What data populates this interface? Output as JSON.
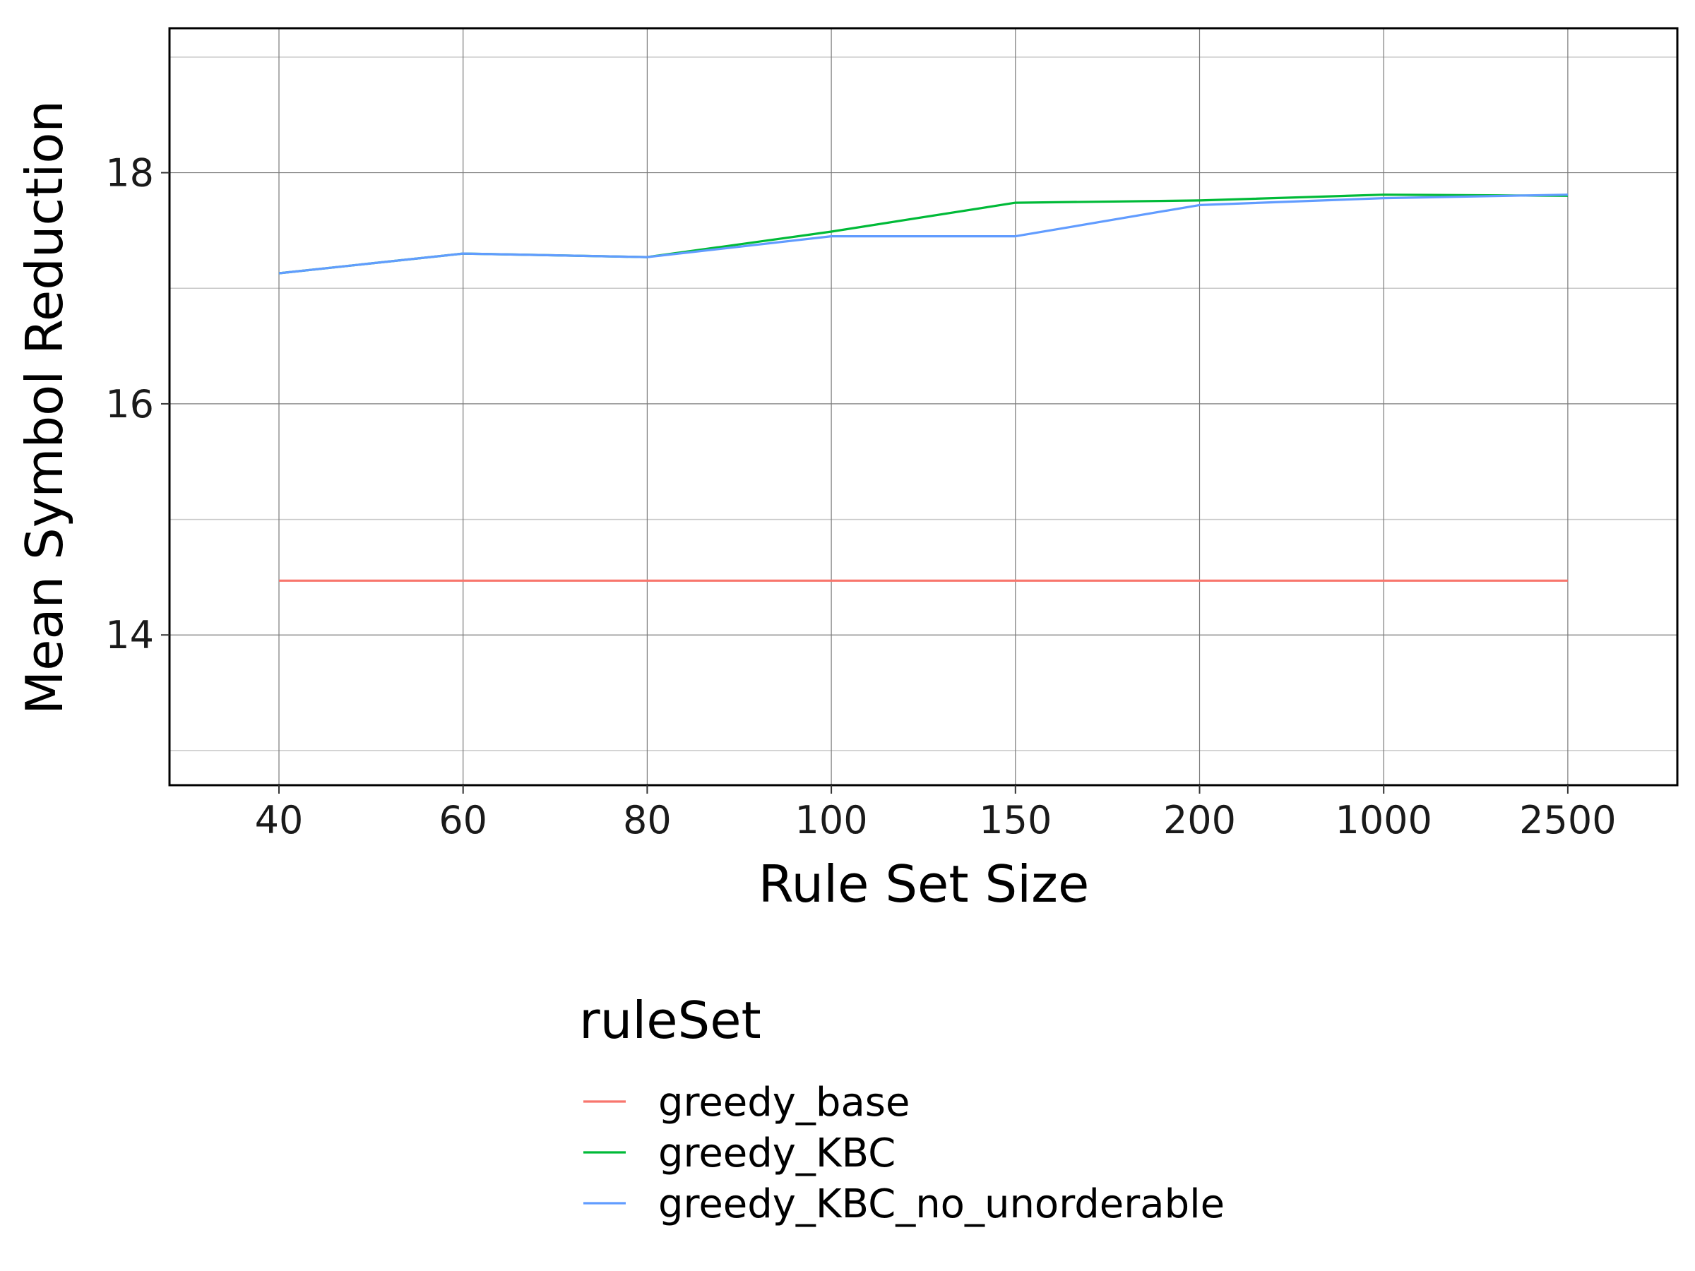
{
  "chart_data": {
    "type": "line",
    "xlabel": "Rule Set Size",
    "ylabel": "Mean Symbol Reduction",
    "x_scale": "categorical",
    "categories": [
      "40",
      "60",
      "80",
      "100",
      "150",
      "200",
      "1000",
      "2500"
    ],
    "ylim": [
      12.7,
      19.25
    ],
    "yticks": [
      14,
      16,
      18
    ],
    "y_minor_gridlines": [
      13,
      15,
      17,
      19
    ],
    "grid": true,
    "legend": {
      "title": "ruleSet",
      "placement": "bottom"
    },
    "series": [
      {
        "name": "greedy_base",
        "color": "#F8766D",
        "values": [
          14.47,
          14.47,
          14.47,
          14.47,
          14.47,
          14.47,
          14.47,
          14.47
        ]
      },
      {
        "name": "greedy_KBC",
        "color": "#00BA38",
        "values": [
          17.13,
          17.3,
          17.27,
          17.49,
          17.74,
          17.76,
          17.81,
          17.8
        ]
      },
      {
        "name": "greedy_KBC_no_unorderable",
        "color": "#619CFF",
        "values": [
          17.13,
          17.3,
          17.27,
          17.45,
          17.45,
          17.72,
          17.78,
          17.81
        ]
      }
    ]
  }
}
